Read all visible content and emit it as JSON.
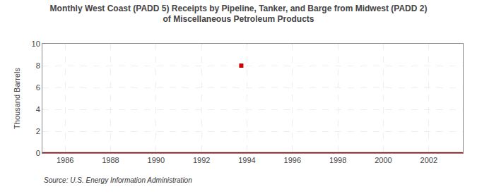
{
  "chart_data": {
    "type": "line",
    "title": "Monthly West Coast (PADD 5) Receipts by Pipeline, Tanker, and Barge from Midwest (PADD 2)\nof Miscellaneous Petroleum Products",
    "ylabel": "Thousand Barrels",
    "annotations": [
      "Source: U.S. Energy Information Administration"
    ],
    "series": [
      {
        "type": "line",
        "color": "#8b0000",
        "x": [
          1985.0,
          2003.5
        ],
        "values": [
          0,
          0
        ]
      },
      {
        "type": "scatter",
        "marker": "square",
        "color": "#cc0000",
        "x": [
          1993.75
        ],
        "values": [
          8
        ]
      }
    ],
    "xlim": [
      1985.0,
      2003.5
    ],
    "ylim": [
      0,
      10
    ],
    "xticks": [
      1986,
      1988,
      1990,
      1992,
      1994,
      1996,
      1998,
      2000,
      2002
    ],
    "yticks": [
      0,
      2,
      4,
      6,
      8,
      10
    ],
    "grid": true
  }
}
